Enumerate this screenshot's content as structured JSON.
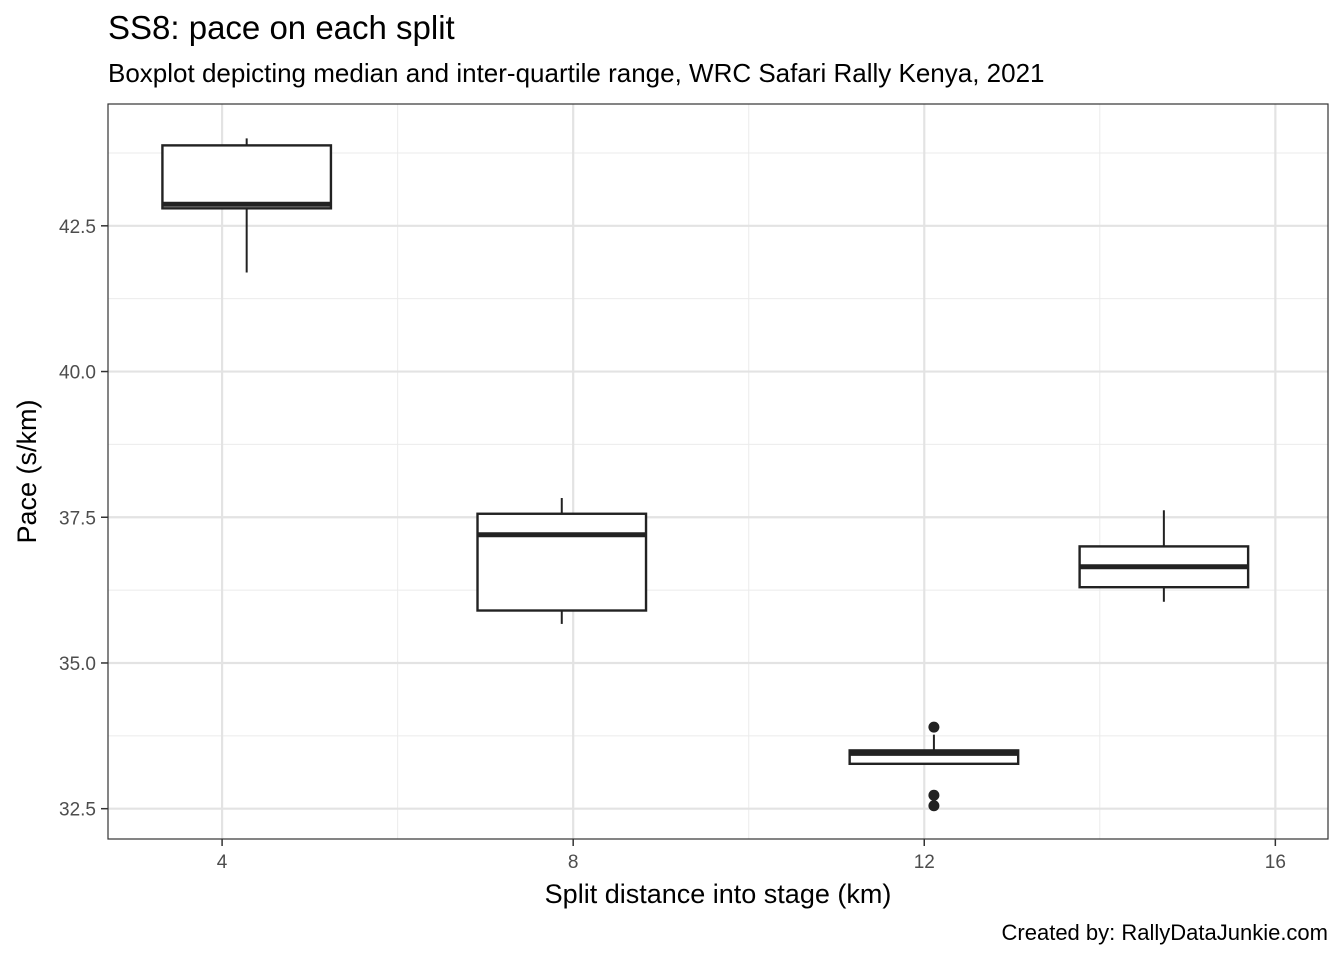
{
  "chart_data": {
    "type": "boxplot",
    "title": "SS8: pace on each split",
    "subtitle": "Boxplot depicting median and inter-quartile range, WRC Safari Rally Kenya, 2021",
    "caption": "Created by: RallyDataJunkie.com",
    "xlabel": "Split distance into stage (km)",
    "ylabel": "Pace (s/km)",
    "xlim": [
      2.7,
      16.6
    ],
    "ylim": [
      31.98,
      44.59
    ],
    "x_ticks": [
      {
        "value": 4,
        "label": "4"
      },
      {
        "value": 8,
        "label": "8"
      },
      {
        "value": 12,
        "label": "12"
      },
      {
        "value": 16,
        "label": "16"
      }
    ],
    "y_ticks": [
      {
        "value": 32.5,
        "label": "32.5"
      },
      {
        "value": 35.0,
        "label": "35.0"
      },
      {
        "value": 37.5,
        "label": "37.5"
      },
      {
        "value": 40.0,
        "label": "40.0"
      },
      {
        "value": 42.5,
        "label": "42.5"
      }
    ],
    "grid": true,
    "boxes": [
      {
        "x": 4.28,
        "width": 1.92,
        "min": 41.7,
        "q1": 42.8,
        "median": 42.87,
        "q3": 43.88,
        "max": 44.0,
        "outliers": []
      },
      {
        "x": 7.87,
        "width": 1.92,
        "min": 35.67,
        "q1": 35.9,
        "median": 37.2,
        "q3": 37.56,
        "max": 37.83,
        "outliers": []
      },
      {
        "x": 12.11,
        "width": 1.92,
        "min": 33.27,
        "q1": 33.27,
        "median": 33.45,
        "q3": 33.5,
        "max": 33.77,
        "outliers": [
          33.9,
          32.73,
          32.55
        ]
      },
      {
        "x": 14.73,
        "width": 1.92,
        "min": 36.05,
        "q1": 36.3,
        "median": 36.65,
        "q3": 37.0,
        "max": 37.62,
        "outliers": []
      }
    ]
  }
}
